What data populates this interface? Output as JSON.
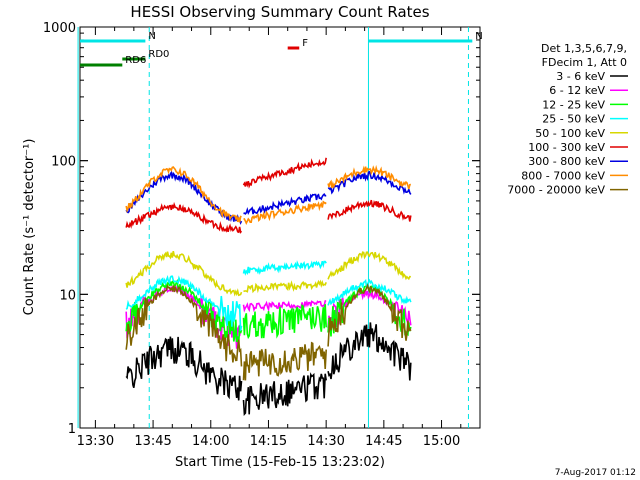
{
  "chart_data": {
    "type": "line",
    "title": "HESSI Observing Summary Count Rates",
    "xlabel": "Start Time (15-Feb-15 13:23:02)",
    "ylabel": "Count Rate (s⁻¹ detector⁻¹)",
    "yscale": "log",
    "ylim": [
      1,
      1000
    ],
    "xlim_minutes": [
      -4,
      100
    ],
    "xticks": [
      {
        "m": 0,
        "label": "13:30"
      },
      {
        "m": 15,
        "label": "13:45"
      },
      {
        "m": 30,
        "label": "14:00"
      },
      {
        "m": 45,
        "label": "14:15"
      },
      {
        "m": 60,
        "label": "14:30"
      },
      {
        "m": 75,
        "label": "14:45"
      },
      {
        "m": 90,
        "label": "15:00"
      }
    ],
    "yticks": [
      {
        "v": 1,
        "label": "1"
      },
      {
        "v": 10,
        "label": "10"
      },
      {
        "v": 100,
        "label": "100"
      },
      {
        "v": 1000,
        "label": "1000"
      }
    ],
    "legend_header": [
      "Det 1,3,5,6,7,9,",
      "FDecim 1, Att 0"
    ],
    "legend_placement": "right",
    "series": [
      {
        "name": "3 - 6 keV",
        "color": "#000000"
      },
      {
        "name": "6 - 12 keV",
        "color": "#ff00ff"
      },
      {
        "name": "12 - 25 keV",
        "color": "#00ff00"
      },
      {
        "name": "25 - 50 keV",
        "color": "#00ffff"
      },
      {
        "name": "50 - 100 keV",
        "color": "#d7d700"
      },
      {
        "name": "100 - 300 keV",
        "color": "#e00000"
      },
      {
        "name": "300 - 800 keV",
        "color": "#0000e0"
      },
      {
        "name": "800 - 7000 keV",
        "color": "#ff8c00"
      },
      {
        "name": "7000 - 20000 keV",
        "color": "#806400"
      }
    ],
    "segments": [
      {
        "start_min": 8,
        "end_min": 38
      },
      {
        "start_min": 38.5,
        "end_min": 60
      },
      {
        "start_min": 60.5,
        "end_min": 82
      }
    ],
    "annotations": [
      {
        "label": "N",
        "color": "#00e5e5",
        "start_min": -4,
        "end_min": 13
      },
      {
        "label": "N",
        "color": "#00e5e5",
        "start_min": 71,
        "end_min": 98
      },
      {
        "label": "RD0",
        "color": "#008000",
        "start_min": 7,
        "end_min": 13
      },
      {
        "label": "RD6",
        "color": "#008000",
        "start_min": -4,
        "end_min": 7
      },
      {
        "label": "F",
        "color": "#e00000",
        "start_min": 50,
        "end_min": 53
      }
    ],
    "footer_date": "7-Aug-2017 01:12"
  }
}
